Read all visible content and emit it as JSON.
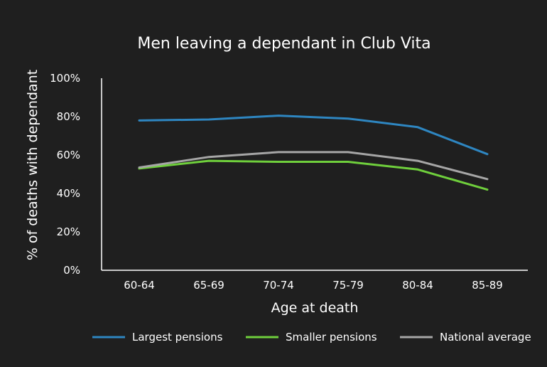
{
  "chart_data": {
    "type": "line",
    "title": "Men leaving a dependant in Club Vita",
    "xlabel": "Age at death",
    "ylabel": "% of deaths with dependant",
    "categories": [
      "60-64",
      "65-69",
      "70-74",
      "75-79",
      "80-84",
      "85-89"
    ],
    "y_ticks": [
      "0%",
      "20%",
      "40%",
      "60%",
      "80%",
      "100%"
    ],
    "ylim": [
      0,
      100
    ],
    "grid": false,
    "legend_position": "bottom",
    "series": [
      {
        "name": "Largest pensions",
        "color": "#2e86c1",
        "values": [
          78,
          78.5,
          80.5,
          79,
          74.5,
          60.5
        ]
      },
      {
        "name": "Smaller pensions",
        "color": "#6fcf3c",
        "values": [
          53,
          57,
          56.5,
          56.5,
          52.5,
          42
        ]
      },
      {
        "name": "National average",
        "color": "#a6a6a6",
        "values": [
          53.5,
          59,
          61.5,
          61.5,
          57,
          47.5
        ]
      }
    ]
  }
}
